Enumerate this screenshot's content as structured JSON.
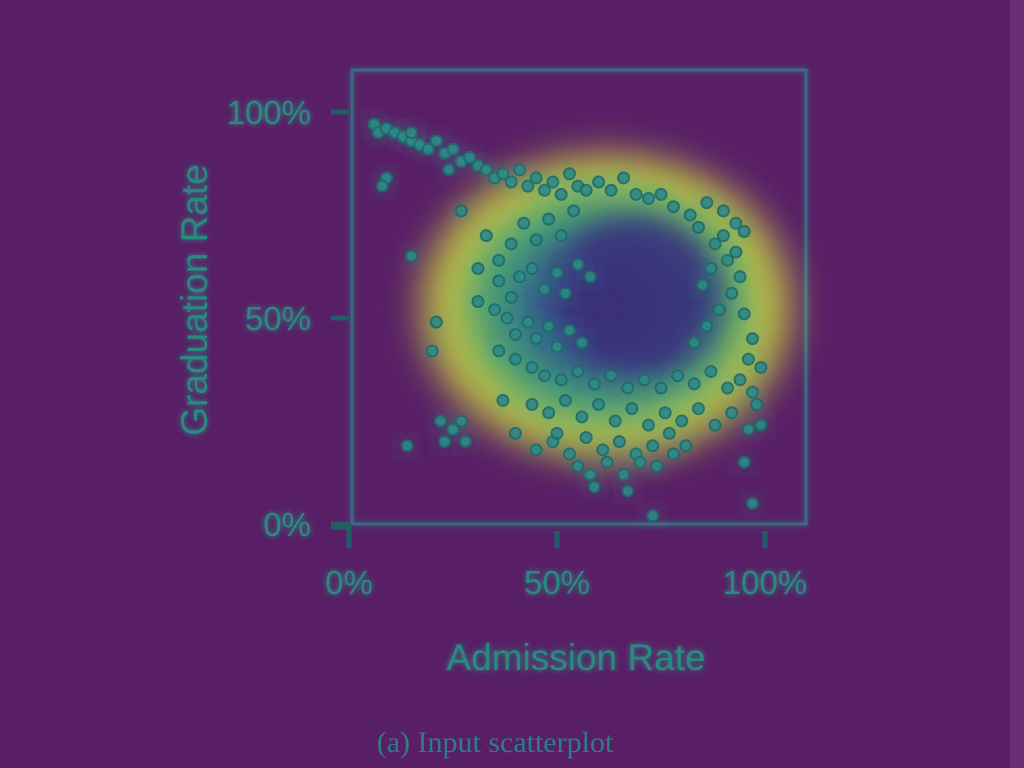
{
  "caption": "(a) Input scatterplot",
  "colors": {
    "background": "#581f66",
    "grid": "#2d8a8a",
    "axis": "#1f5f63",
    "text": "#2a8a80",
    "glow": "#31b49a",
    "point": "#2e8a86",
    "point_edge": "#1f6b6b",
    "dense": "#d6e23a",
    "void": "#3b2f7a"
  },
  "chart_data": {
    "type": "scatter",
    "title": "",
    "xlabel": "Admission Rate",
    "ylabel": "Graduation Rate",
    "xlim": [
      0,
      1
    ],
    "ylim": [
      0,
      1
    ],
    "x_ticks": [
      {
        "value": 0,
        "label": "0%"
      },
      {
        "value": 0.5,
        "label": "50%"
      },
      {
        "value": 1,
        "label": "100%"
      }
    ],
    "y_ticks": [
      {
        "value": 0,
        "label": "0%"
      },
      {
        "value": 0.5,
        "label": "50%"
      },
      {
        "value": 1,
        "label": "100%"
      }
    ],
    "grid": true,
    "gridlines": {
      "x": [
        0,
        0.25,
        0.5,
        0.75,
        1
      ],
      "y": [
        0,
        0.25,
        0.5,
        0.75,
        1
      ]
    },
    "points": [
      [
        0.06,
        0.97
      ],
      [
        0.07,
        0.95
      ],
      [
        0.09,
        0.96
      ],
      [
        0.11,
        0.95
      ],
      [
        0.13,
        0.94
      ],
      [
        0.15,
        0.93
      ],
      [
        0.17,
        0.92
      ],
      [
        0.19,
        0.91
      ],
      [
        0.21,
        0.93
      ],
      [
        0.23,
        0.9
      ],
      [
        0.25,
        0.91
      ],
      [
        0.27,
        0.88
      ],
      [
        0.29,
        0.89
      ],
      [
        0.31,
        0.87
      ],
      [
        0.24,
        0.86
      ],
      [
        0.33,
        0.86
      ],
      [
        0.35,
        0.84
      ],
      [
        0.37,
        0.85
      ],
      [
        0.39,
        0.83
      ],
      [
        0.41,
        0.86
      ],
      [
        0.43,
        0.82
      ],
      [
        0.45,
        0.84
      ],
      [
        0.47,
        0.81
      ],
      [
        0.49,
        0.83
      ],
      [
        0.51,
        0.8
      ],
      [
        0.53,
        0.85
      ],
      [
        0.55,
        0.82
      ],
      [
        0.57,
        0.81
      ],
      [
        0.6,
        0.83
      ],
      [
        0.63,
        0.81
      ],
      [
        0.66,
        0.84
      ],
      [
        0.69,
        0.8
      ],
      [
        0.72,
        0.79
      ],
      [
        0.75,
        0.8
      ],
      [
        0.78,
        0.77
      ],
      [
        0.82,
        0.75
      ],
      [
        0.86,
        0.78
      ],
      [
        0.9,
        0.76
      ],
      [
        0.93,
        0.73
      ],
      [
        0.95,
        0.71
      ],
      [
        0.09,
        0.84
      ],
      [
        0.27,
        0.76
      ],
      [
        0.33,
        0.7
      ],
      [
        0.36,
        0.64
      ],
      [
        0.39,
        0.68
      ],
      [
        0.42,
        0.73
      ],
      [
        0.45,
        0.69
      ],
      [
        0.48,
        0.74
      ],
      [
        0.51,
        0.7
      ],
      [
        0.54,
        0.76
      ],
      [
        0.36,
        0.59
      ],
      [
        0.39,
        0.55
      ],
      [
        0.41,
        0.6
      ],
      [
        0.44,
        0.62
      ],
      [
        0.47,
        0.57
      ],
      [
        0.5,
        0.61
      ],
      [
        0.52,
        0.56
      ],
      [
        0.55,
        0.63
      ],
      [
        0.58,
        0.6
      ],
      [
        0.35,
        0.52
      ],
      [
        0.38,
        0.5
      ],
      [
        0.4,
        0.46
      ],
      [
        0.43,
        0.49
      ],
      [
        0.45,
        0.45
      ],
      [
        0.48,
        0.48
      ],
      [
        0.5,
        0.43
      ],
      [
        0.53,
        0.47
      ],
      [
        0.56,
        0.44
      ],
      [
        0.36,
        0.42
      ],
      [
        0.4,
        0.4
      ],
      [
        0.44,
        0.38
      ],
      [
        0.47,
        0.36
      ],
      [
        0.51,
        0.35
      ],
      [
        0.55,
        0.37
      ],
      [
        0.59,
        0.34
      ],
      [
        0.63,
        0.36
      ],
      [
        0.67,
        0.33
      ],
      [
        0.71,
        0.35
      ],
      [
        0.75,
        0.33
      ],
      [
        0.79,
        0.36
      ],
      [
        0.83,
        0.34
      ],
      [
        0.87,
        0.37
      ],
      [
        0.91,
        0.33
      ],
      [
        0.94,
        0.35
      ],
      [
        0.97,
        0.32
      ],
      [
        0.44,
        0.29
      ],
      [
        0.48,
        0.27
      ],
      [
        0.52,
        0.3
      ],
      [
        0.56,
        0.26
      ],
      [
        0.6,
        0.29
      ],
      [
        0.64,
        0.25
      ],
      [
        0.68,
        0.28
      ],
      [
        0.72,
        0.24
      ],
      [
        0.76,
        0.27
      ],
      [
        0.8,
        0.25
      ],
      [
        0.84,
        0.28
      ],
      [
        0.88,
        0.24
      ],
      [
        0.92,
        0.27
      ],
      [
        0.96,
        0.23
      ],
      [
        0.98,
        0.29
      ],
      [
        0.49,
        0.2
      ],
      [
        0.53,
        0.17
      ],
      [
        0.57,
        0.21
      ],
      [
        0.61,
        0.18
      ],
      [
        0.65,
        0.2
      ],
      [
        0.69,
        0.17
      ],
      [
        0.73,
        0.19
      ],
      [
        0.77,
        0.22
      ],
      [
        0.81,
        0.19
      ],
      [
        0.58,
        0.12
      ],
      [
        0.62,
        0.15
      ],
      [
        0.66,
        0.12
      ],
      [
        0.7,
        0.15
      ],
      [
        0.74,
        0.14
      ],
      [
        0.78,
        0.17
      ],
      [
        0.83,
        0.44
      ],
      [
        0.86,
        0.48
      ],
      [
        0.89,
        0.52
      ],
      [
        0.92,
        0.56
      ],
      [
        0.95,
        0.51
      ],
      [
        0.97,
        0.45
      ],
      [
        0.94,
        0.6
      ],
      [
        0.91,
        0.64
      ],
      [
        0.88,
        0.68
      ],
      [
        0.96,
        0.4
      ],
      [
        0.85,
        0.58
      ],
      [
        0.87,
        0.62
      ],
      [
        0.9,
        0.7
      ],
      [
        0.93,
        0.66
      ],
      [
        0.84,
        0.72
      ],
      [
        0.55,
        0.14
      ],
      [
        0.59,
        0.09
      ],
      [
        0.67,
        0.08
      ],
      [
        0.73,
        0.02
      ],
      [
        0.95,
        0.15
      ],
      [
        0.97,
        0.05
      ],
      [
        0.99,
        0.24
      ],
      [
        0.99,
        0.38
      ],
      [
        0.15,
        0.65
      ],
      [
        0.21,
        0.49
      ],
      [
        0.2,
        0.42
      ],
      [
        0.22,
        0.25
      ],
      [
        0.25,
        0.23
      ],
      [
        0.23,
        0.2
      ],
      [
        0.14,
        0.19
      ],
      [
        0.27,
        0.25
      ],
      [
        0.28,
        0.2
      ],
      [
        0.08,
        0.82
      ],
      [
        0.15,
        0.95
      ],
      [
        0.31,
        0.62
      ],
      [
        0.31,
        0.54
      ],
      [
        0.37,
        0.3
      ],
      [
        0.4,
        0.22
      ],
      [
        0.45,
        0.18
      ],
      [
        0.5,
        0.22
      ]
    ],
    "density_annotation": "dense ring around a low-density center"
  }
}
